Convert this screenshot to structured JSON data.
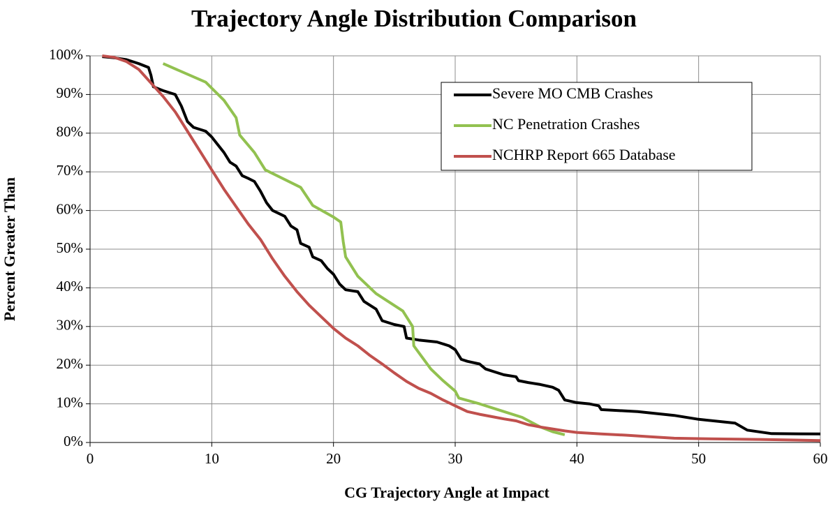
{
  "chart_data": {
    "type": "line",
    "title": "Trajectory Angle Distribution Comparison",
    "xlabel": "CG Trajectory Angle at Impact",
    "ylabel": "Percent Greater Than",
    "xlim": [
      0,
      60
    ],
    "xticks": [
      0,
      10,
      20,
      30,
      40,
      50,
      60
    ],
    "ylim": [
      0,
      100
    ],
    "yticks": [
      {
        "value": 0,
        "label": "0%"
      },
      {
        "value": 10,
        "label": "10%"
      },
      {
        "value": 20,
        "label": "20%"
      },
      {
        "value": 30,
        "label": "30%"
      },
      {
        "value": 40,
        "label": "40%"
      },
      {
        "value": 50,
        "label": "50%"
      },
      {
        "value": 60,
        "label": "60%"
      },
      {
        "value": 70,
        "label": "70%"
      },
      {
        "value": 80,
        "label": "80%"
      },
      {
        "value": 90,
        "label": "90%"
      },
      {
        "value": 100,
        "label": "100%"
      }
    ],
    "grid": true,
    "legend": "upper right",
    "series": [
      {
        "name": "Severe MO CMB Crashes",
        "color": "#000000",
        "x": [
          1,
          2,
          3,
          4,
          4.8,
          5,
          5.2,
          6,
          7,
          7.5,
          8,
          8.5,
          9.5,
          10,
          10.5,
          11,
          11.5,
          12,
          12.5,
          13,
          13.5,
          14,
          14.5,
          15,
          16,
          16.5,
          17,
          17.3,
          18,
          18.3,
          19,
          19.5,
          20,
          20.5,
          21,
          22,
          22.5,
          23.5,
          24,
          25,
          25.8,
          26,
          27,
          28.5,
          29.5,
          30,
          30.5,
          31,
          32,
          32.5,
          33,
          34,
          35,
          35.2,
          36,
          37,
          38,
          38.5,
          39,
          40,
          41,
          41.8,
          42,
          45,
          48,
          50,
          53,
          54,
          56,
          60
        ],
        "values": [
          99.8,
          99.5,
          99,
          98,
          97,
          95,
          92,
          91,
          90,
          87,
          83,
          81.5,
          80.5,
          79,
          77,
          75,
          72.5,
          71.5,
          69,
          68.3,
          67.5,
          65,
          62,
          60,
          58.5,
          56,
          55,
          51.5,
          50.5,
          48,
          47,
          45,
          43.5,
          41,
          39.5,
          39,
          36.5,
          34.5,
          31.5,
          30.5,
          30,
          27,
          26.5,
          26,
          25,
          24,
          21.5,
          21,
          20.3,
          19,
          18.5,
          17.5,
          17,
          16,
          15.5,
          15,
          14.3,
          13.5,
          11,
          10.3,
          10,
          9.5,
          8.5,
          8,
          7,
          6,
          5,
          3.2,
          2.3,
          2.2
        ]
      },
      {
        "name": "NC Penetration Crashes",
        "color": "#92c150",
        "x": [
          6,
          9.5,
          11,
          12,
          12.3,
          13.5,
          14.4,
          17.3,
          18.3,
          20,
          20.6,
          20.8,
          21,
          22,
          23.5,
          25.7,
          26.5,
          26.6,
          28,
          29,
          30,
          30.3,
          32,
          34,
          35.5,
          37,
          38,
          39
        ],
        "values": [
          98,
          93.2,
          88.5,
          84,
          79.5,
          75,
          70.5,
          66,
          61.3,
          58.3,
          57,
          52,
          48,
          43,
          38.5,
          34,
          30,
          25,
          19,
          16,
          13.3,
          11.5,
          10,
          8,
          6.5,
          4,
          2.8,
          2
        ]
      },
      {
        "name": "NCHRP Report 665 Database",
        "color": "#c0504d",
        "x": [
          1,
          2,
          3,
          4,
          5,
          6,
          7,
          8,
          9,
          10,
          11,
          12,
          13,
          14,
          15,
          16,
          17,
          18,
          19,
          20,
          21,
          22,
          23,
          24,
          25,
          26,
          27,
          28,
          29,
          30,
          31,
          32,
          33,
          34,
          35,
          36,
          37,
          38,
          39,
          40,
          42,
          44,
          46,
          48,
          50,
          55,
          60
        ],
        "values": [
          100,
          99.6,
          98.5,
          96.5,
          93,
          89.5,
          85.5,
          80.5,
          75.5,
          70.5,
          65.5,
          61,
          56.5,
          52.5,
          47.5,
          43,
          39,
          35.5,
          32.5,
          29.5,
          27,
          25,
          22.5,
          20.3,
          18,
          15.8,
          14,
          12.7,
          11,
          9.5,
          8,
          7.3,
          6.7,
          6.1,
          5.6,
          4.6,
          4,
          3.5,
          3,
          2.6,
          2.2,
          1.9,
          1.5,
          1.1,
          1,
          0.8,
          0.5
        ]
      }
    ]
  }
}
